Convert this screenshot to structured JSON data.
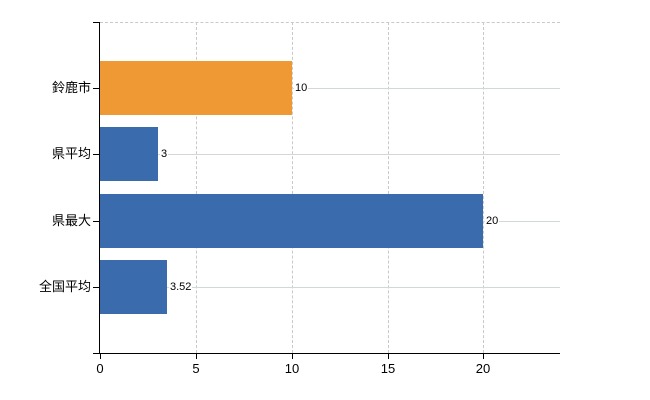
{
  "chart_data": {
    "type": "bar",
    "orientation": "horizontal",
    "title": "",
    "categories": [
      "鈴鹿市",
      "県平均",
      "県最大",
      "全国平均"
    ],
    "values": [
      10,
      3,
      20,
      3.52
    ],
    "value_labels": [
      "10",
      "3",
      "20",
      "3.52"
    ],
    "bar_colors": [
      "#EE9933",
      "#3A6CAD",
      "#3A6CAD",
      "#3A6CAD"
    ],
    "x_ticks": [
      "0",
      "5",
      "10",
      "15",
      "20"
    ],
    "x_tick_values": [
      0,
      5,
      10,
      15,
      20
    ],
    "xlim": [
      0,
      24
    ],
    "grid": true,
    "legend_visible": false,
    "colors": {
      "highlight_bar": "#EE9933",
      "default_bar": "#3A6CAD",
      "grid_horizontal": "#D2D8D2",
      "grid_vertical": "#C9C9C9",
      "axis": "#000000",
      "text": "#000000",
      "background": "#FFFFFF"
    }
  }
}
